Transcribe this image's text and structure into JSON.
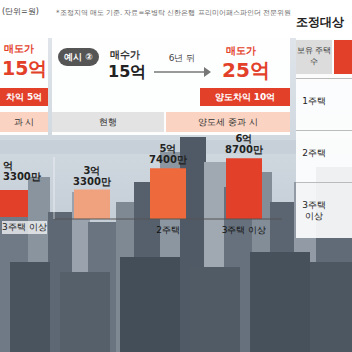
{
  "header": {
    "unit": "(단위=원)",
    "note": "*조정지역 매도 기준. 자료=우병탁 신한은행 프리미어패스파인더 전문위원"
  },
  "left_panel": {
    "sell_label": "매도가",
    "sell_value": "15억",
    "gain": "차익 5억",
    "band": "과 시",
    "bar_label": [
      "억",
      "3300만"
    ],
    "category": "3주택 이상"
  },
  "example": {
    "badge": "예시",
    "number": "②",
    "buy_label": "매수가",
    "buy_value": "15억",
    "period": "6년 뒤",
    "sell_label": "매도가",
    "sell_value": "25억",
    "gain": "양도차익 10억",
    "col_current": "현행",
    "col_heavy": "양도세 중과 시"
  },
  "chart_data": {
    "type": "bar",
    "categories": [
      null,
      "2주택",
      "3주택 이상"
    ],
    "values": [
      3.33,
      5.74,
      6.87
    ],
    "value_labels": [
      "3억 3300만",
      "5억 7400만",
      "6억 8700만"
    ],
    "colors": [
      "#f0a27e",
      "#ee6a3c",
      "#e3402a"
    ],
    "ylim": [
      0,
      7
    ],
    "data_labels": true,
    "tick_labels": "x"
  },
  "right_panel": {
    "title": "조정대상",
    "header": "보유 주택 수",
    "rows": [
      "1주택",
      "2주택",
      "3주택 이상"
    ]
  }
}
